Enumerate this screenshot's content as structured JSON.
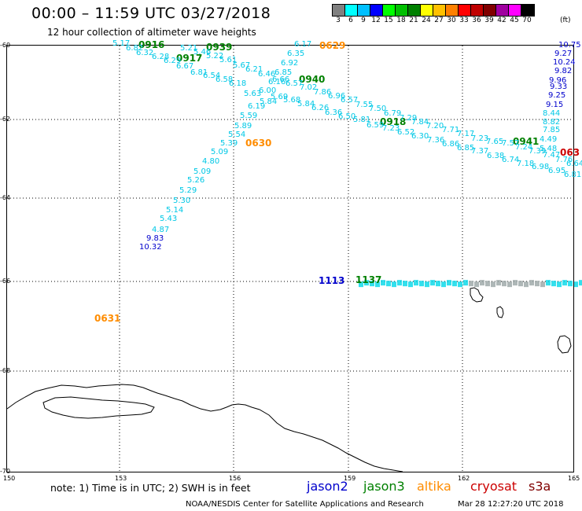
{
  "title": "00:00 – 11:59 UTC 03/27/2018",
  "subtitle": "12 hour collection of altimeter wave heights",
  "scale": {
    "labels": [
      "3",
      "6",
      "9",
      "12",
      "15",
      "18",
      "21",
      "24",
      "27",
      "30",
      "33",
      "36",
      "39",
      "42",
      "45",
      "70"
    ],
    "unit": "(ft)",
    "colors": [
      "#808080",
      "#00ffff",
      "#00c0ff",
      "#0000ff",
      "#00ff00",
      "#00c000",
      "#008000",
      "#ffff00",
      "#ffc000",
      "#ff8000",
      "#ff0000",
      "#c00000",
      "#800000",
      "#a000a0",
      "#ff00ff",
      "#000000"
    ]
  },
  "axes": {
    "lat_labels": [
      "-60",
      "-62",
      "-64",
      "-66",
      "-68",
      "-70"
    ],
    "lon_labels": [
      "150",
      "153",
      "156",
      "159",
      "162",
      "165"
    ]
  },
  "note": "note:  1) Time is in UTC;  2) SWH is in feet",
  "legend": [
    {
      "label": "jason2",
      "color": "#0000cc"
    },
    {
      "label": "jason3",
      "color": "#008000"
    },
    {
      "label": "altika",
      "color": "#ff8c00"
    },
    {
      "label": "cryosat",
      "color": "#cc0000"
    },
    {
      "label": "s3a",
      "color": "#800000"
    }
  ],
  "credit": "NOAA/NESDIS Center for Satellite Applications and Research",
  "timestamp": "Mar 28 12:27:20 UTC 2018",
  "map_data": {
    "pass_labels": [
      {
        "text": "0916",
        "color": "#008000"
      },
      {
        "text": "0939",
        "color": "#008000"
      },
      {
        "text": "0917",
        "color": "#008000"
      },
      {
        "text": "0629",
        "color": "#ff8c00"
      },
      {
        "text": "0940",
        "color": "#008000"
      },
      {
        "text": "0918",
        "color": "#008000"
      },
      {
        "text": "0941",
        "color": "#008000"
      },
      {
        "text": "063",
        "color": "#cc0000"
      },
      {
        "text": "0630",
        "color": "#ff8c00"
      },
      {
        "text": "0631",
        "color": "#ff8c00"
      },
      {
        "text": "1113",
        "color": "#0000cc"
      },
      {
        "text": "1137",
        "color": "#008000"
      }
    ],
    "readings": [
      {
        "text": "5.17",
        "color": "#00c8e6"
      },
      {
        "text": "6.82",
        "color": "#00c8e6"
      },
      {
        "text": "6.32",
        "color": "#00c8e6"
      },
      {
        "text": "6.28",
        "color": "#00c8e6"
      },
      {
        "text": "6.29",
        "color": "#00c8e6"
      },
      {
        "text": "6.67",
        "color": "#00c8e6"
      },
      {
        "text": "6.81",
        "color": "#00c8e6"
      },
      {
        "text": "6.54",
        "color": "#00c8e6"
      },
      {
        "text": "6.58",
        "color": "#00c8e6"
      },
      {
        "text": "6.18",
        "color": "#00c8e6"
      },
      {
        "text": "5.63",
        "color": "#00c8e6"
      },
      {
        "text": "5.84",
        "color": "#00c8e6"
      },
      {
        "text": "5.69",
        "color": "#00c8e6"
      },
      {
        "text": "5.68",
        "color": "#00c8e6"
      },
      {
        "text": "5.84",
        "color": "#00c8e6"
      },
      {
        "text": "6.26",
        "color": "#00c8e6"
      },
      {
        "text": "6.36",
        "color": "#00c8e6"
      },
      {
        "text": "6.50",
        "color": "#00c8e6"
      },
      {
        "text": "5.81",
        "color": "#00c8e6"
      },
      {
        "text": "6.59",
        "color": "#00c8e6"
      },
      {
        "text": "7.23",
        "color": "#00c8e6"
      },
      {
        "text": "6.52",
        "color": "#00c8e6"
      },
      {
        "text": "6.30",
        "color": "#00c8e6"
      },
      {
        "text": "7.36",
        "color": "#00c8e6"
      },
      {
        "text": "6.86",
        "color": "#00c8e6"
      },
      {
        "text": "6.85",
        "color": "#00c8e6"
      },
      {
        "text": "7.37",
        "color": "#00c8e6"
      },
      {
        "text": "6.38",
        "color": "#00c8e6"
      },
      {
        "text": "6.74",
        "color": "#00c8e6"
      },
      {
        "text": "7.18",
        "color": "#00c8e6"
      },
      {
        "text": "6.98",
        "color": "#00c8e6"
      },
      {
        "text": "6.95",
        "color": "#00c8e6"
      },
      {
        "text": "6.81",
        "color": "#00c8e6"
      },
      {
        "text": "5.21",
        "color": "#00c8e6"
      },
      {
        "text": "5.46",
        "color": "#00c8e6"
      },
      {
        "text": "5.22",
        "color": "#00c8e6"
      },
      {
        "text": "5.61",
        "color": "#00c8e6"
      },
      {
        "text": "5.67",
        "color": "#00c8e6"
      },
      {
        "text": "6.21",
        "color": "#00c8e6"
      },
      {
        "text": "6.46",
        "color": "#00c8e6"
      },
      {
        "text": "6.66",
        "color": "#00c8e6"
      },
      {
        "text": "6.57",
        "color": "#00c8e6"
      },
      {
        "text": "7.02",
        "color": "#00c8e6"
      },
      {
        "text": "7.86",
        "color": "#00c8e6"
      },
      {
        "text": "6.96",
        "color": "#00c8e6"
      },
      {
        "text": "6.57",
        "color": "#00c8e6"
      },
      {
        "text": "7.55",
        "color": "#00c8e6"
      },
      {
        "text": "7.50",
        "color": "#00c8e6"
      },
      {
        "text": "6.79",
        "color": "#00c8e6"
      },
      {
        "text": "7.29",
        "color": "#00c8e6"
      },
      {
        "text": "7.84",
        "color": "#00c8e6"
      },
      {
        "text": "7.20",
        "color": "#00c8e6"
      },
      {
        "text": "7.71",
        "color": "#00c8e6"
      },
      {
        "text": "7.17",
        "color": "#00c8e6"
      },
      {
        "text": "7.23",
        "color": "#00c8e6"
      },
      {
        "text": "7.65",
        "color": "#00c8e6"
      },
      {
        "text": "7.57",
        "color": "#00c8e6"
      },
      {
        "text": "7.24",
        "color": "#00c8e6"
      },
      {
        "text": "7.39",
        "color": "#00c8e6"
      },
      {
        "text": "7.47",
        "color": "#00c8e6"
      },
      {
        "text": "7.76",
        "color": "#00c8e6"
      },
      {
        "text": "6.64",
        "color": "#00c8e6"
      },
      {
        "text": "6.17",
        "color": "#00c8e6"
      },
      {
        "text": "6.35",
        "color": "#00c8e6"
      },
      {
        "text": "6.92",
        "color": "#00c8e6"
      },
      {
        "text": "6.85",
        "color": "#00c8e6"
      },
      {
        "text": "6.16",
        "color": "#00c8e6"
      },
      {
        "text": "6.00",
        "color": "#00c8e6"
      },
      {
        "text": "6.19",
        "color": "#00c8e6"
      },
      {
        "text": "5.59",
        "color": "#00c8e6"
      },
      {
        "text": "5.89",
        "color": "#00c8e6"
      },
      {
        "text": "5.54",
        "color": "#00c8e6"
      },
      {
        "text": "5.39",
        "color": "#00c8e6"
      },
      {
        "text": "5.09",
        "color": "#00c8e6"
      },
      {
        "text": "4.80",
        "color": "#00c8e6"
      },
      {
        "text": "5.09",
        "color": "#00c8e6"
      },
      {
        "text": "5.26",
        "color": "#00c8e6"
      },
      {
        "text": "5.29",
        "color": "#00c8e6"
      },
      {
        "text": "5.30",
        "color": "#00c8e6"
      },
      {
        "text": "5.14",
        "color": "#00c8e6"
      },
      {
        "text": "5.43",
        "color": "#00c8e6"
      },
      {
        "text": "4.87",
        "color": "#00c8e6"
      },
      {
        "text": "9.83",
        "color": "#0000cc"
      },
      {
        "text": "10.32",
        "color": "#0000cc"
      },
      {
        "text": "10.75",
        "color": "#0000cc"
      },
      {
        "text": "9.27",
        "color": "#0000cc"
      },
      {
        "text": "10.24",
        "color": "#0000cc"
      },
      {
        "text": "9.82",
        "color": "#0000cc"
      },
      {
        "text": "9.96",
        "color": "#0000cc"
      },
      {
        "text": "9.33",
        "color": "#0000cc"
      },
      {
        "text": "9.25",
        "color": "#0000cc"
      },
      {
        "text": "9.15",
        "color": "#0000cc"
      },
      {
        "text": "8.44",
        "color": "#00c8e6"
      },
      {
        "text": "8.82",
        "color": "#00c8e6"
      },
      {
        "text": "7.85",
        "color": "#00c8e6"
      },
      {
        "text": "4.49",
        "color": "#00c8e6"
      },
      {
        "text": "5.48",
        "color": "#00c8e6"
      }
    ]
  }
}
